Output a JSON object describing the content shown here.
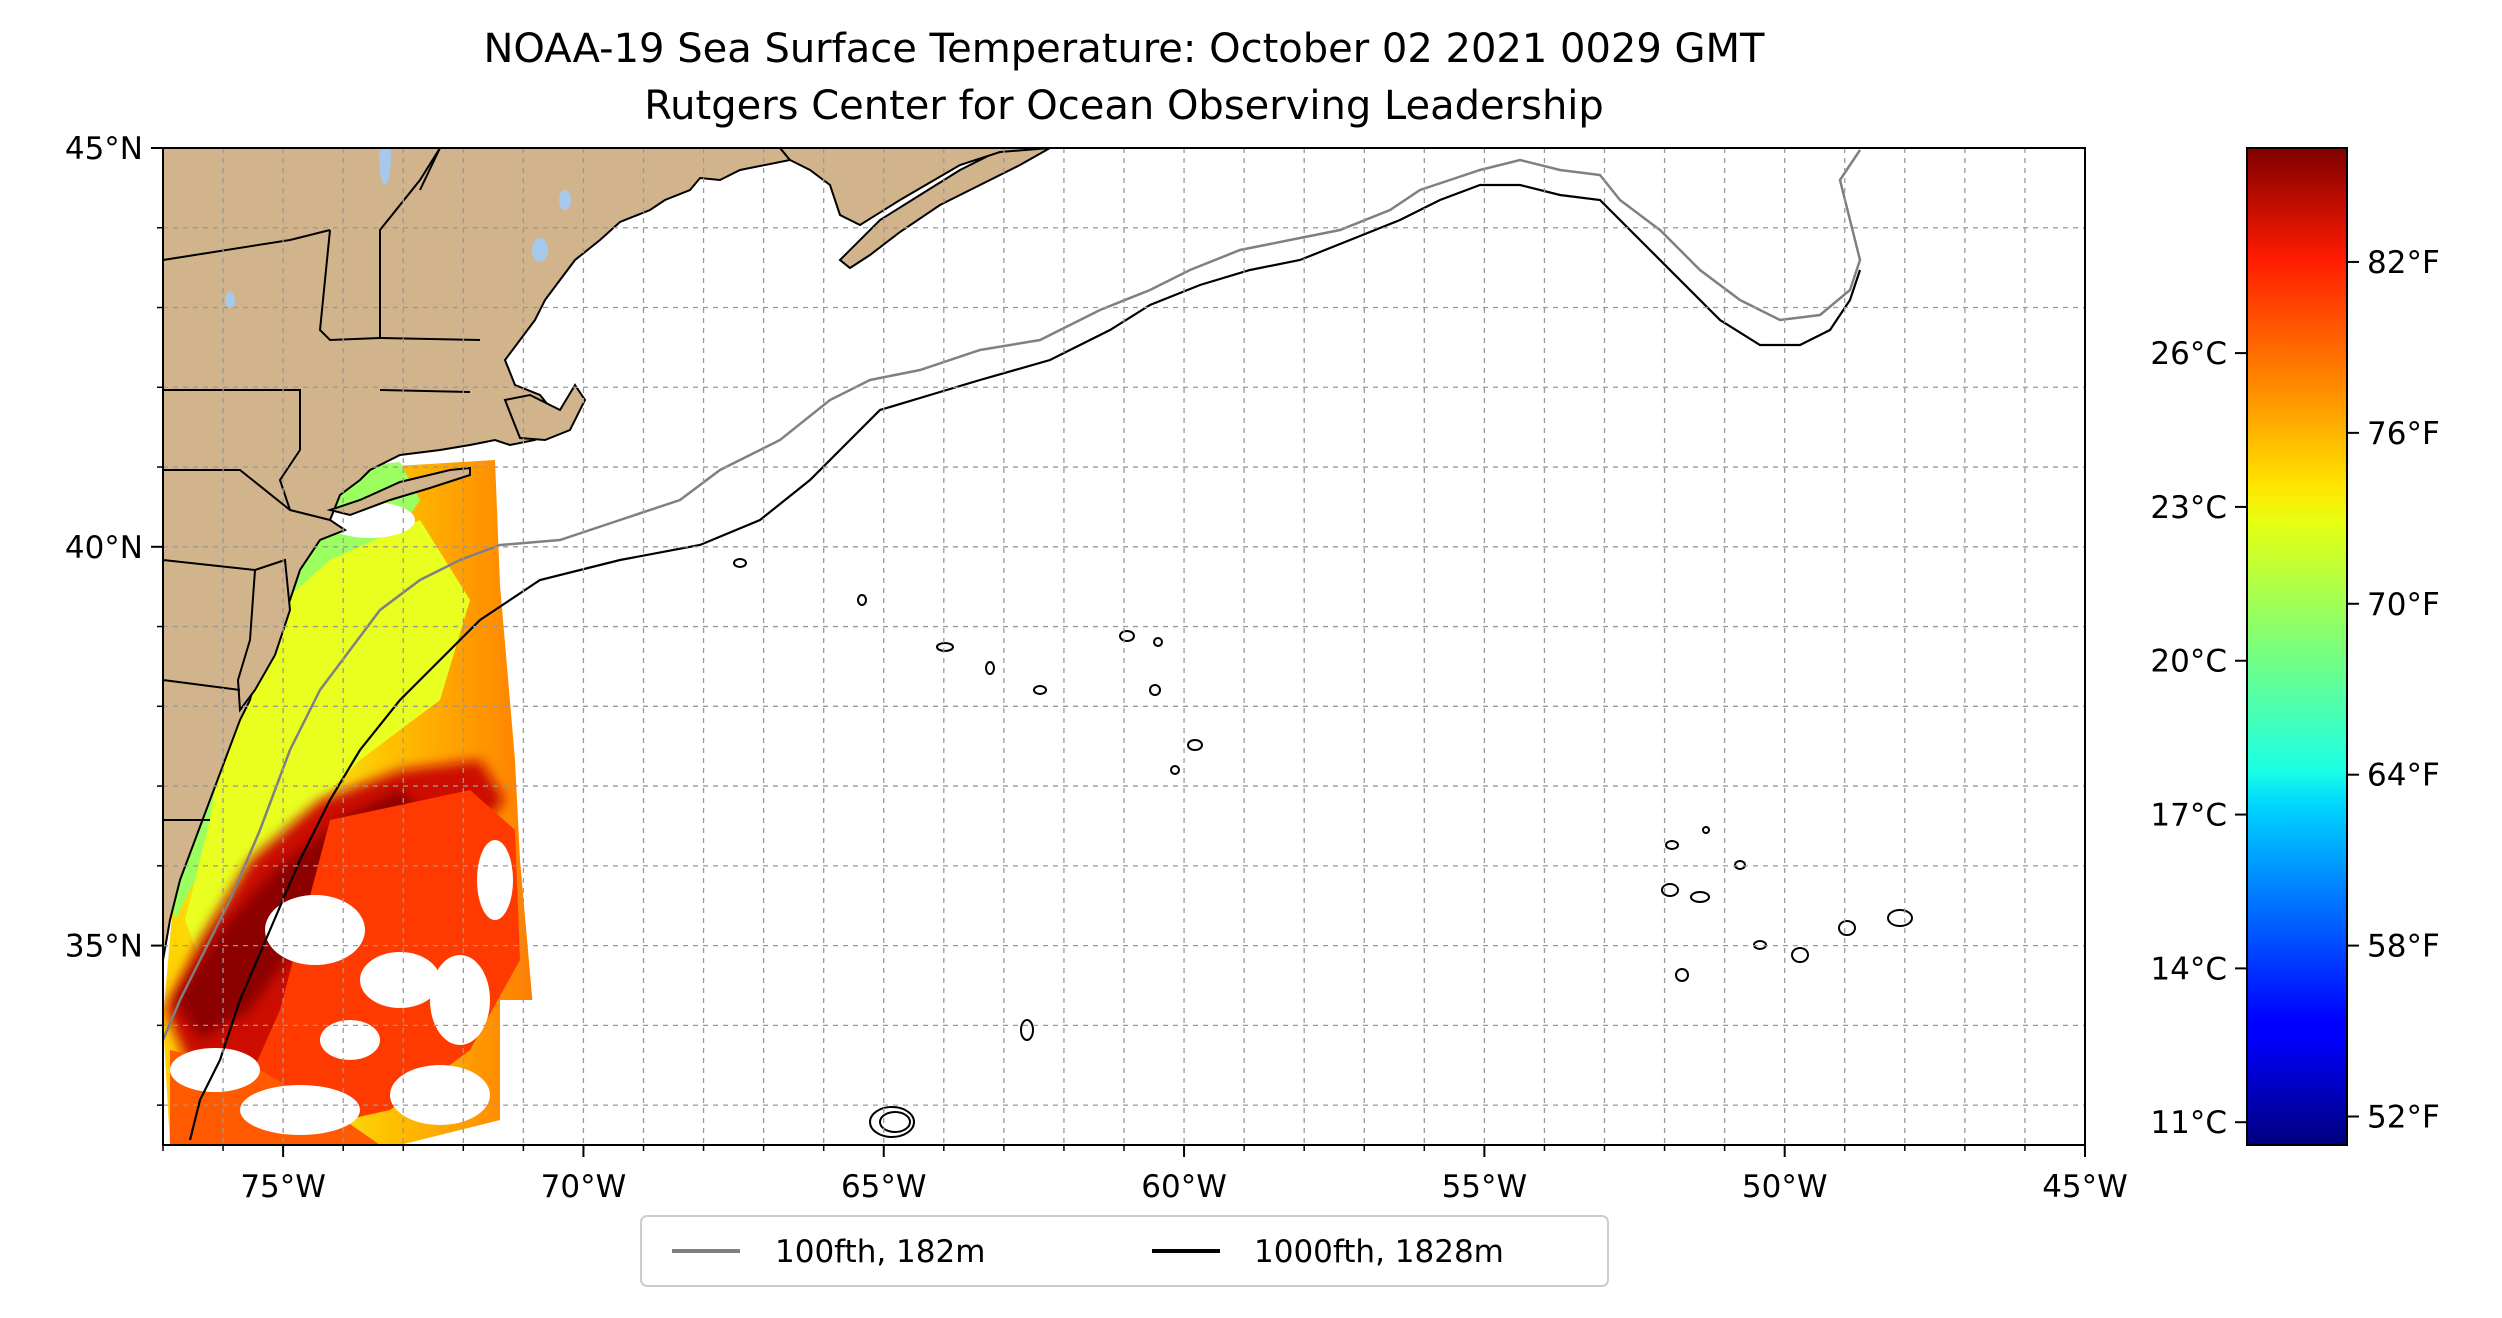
{
  "figure": {
    "title_line1": "NOAA-19 Sea Surface Temperature: October 02 2021 0029 GMT",
    "title_line2": "Rutgers Center for Ocean Observing Leadership"
  },
  "map": {
    "lon_range": [
      -77,
      -45
    ],
    "lat_range": [
      32.5,
      45
    ],
    "gridlines": "dashed, every 1 degree",
    "land_color": "#d2b48c",
    "lake_color": "#a6c8ea",
    "lon_ticks": [
      {
        "value": -75,
        "label": "75°W"
      },
      {
        "value": -70,
        "label": "70°W"
      },
      {
        "value": -65,
        "label": "65°W"
      },
      {
        "value": -60,
        "label": "60°W"
      },
      {
        "value": -55,
        "label": "55°W"
      },
      {
        "value": -50,
        "label": "50°W"
      },
      {
        "value": -45,
        "label": "45°W"
      }
    ],
    "lat_ticks": [
      {
        "value": 45,
        "label": "45°N"
      },
      {
        "value": 40,
        "label": "40°N"
      },
      {
        "value": 35,
        "label": "35°N"
      }
    ]
  },
  "colorbar": {
    "colormap": "jet",
    "range_f": [
      51,
      86
    ],
    "celsius_ticks": [
      {
        "value": 11,
        "label": "11°C"
      },
      {
        "value": 14,
        "label": "14°C"
      },
      {
        "value": 17,
        "label": "17°C"
      },
      {
        "value": 20,
        "label": "20°C"
      },
      {
        "value": 23,
        "label": "23°C"
      },
      {
        "value": 26,
        "label": "26°C"
      }
    ],
    "fahrenheit_ticks": [
      {
        "value": 52,
        "label": "52°F"
      },
      {
        "value": 58,
        "label": "58°F"
      },
      {
        "value": 64,
        "label": "64°F"
      },
      {
        "value": 70,
        "label": "70°F"
      },
      {
        "value": 76,
        "label": "76°F"
      },
      {
        "value": 82,
        "label": "82°F"
      }
    ]
  },
  "legend": {
    "placement": "below map, centered",
    "items": [
      {
        "label": "100fth, 182m",
        "color": "#808080"
      },
      {
        "label": "1000fth, 1828m",
        "color": "#000000"
      }
    ]
  }
}
